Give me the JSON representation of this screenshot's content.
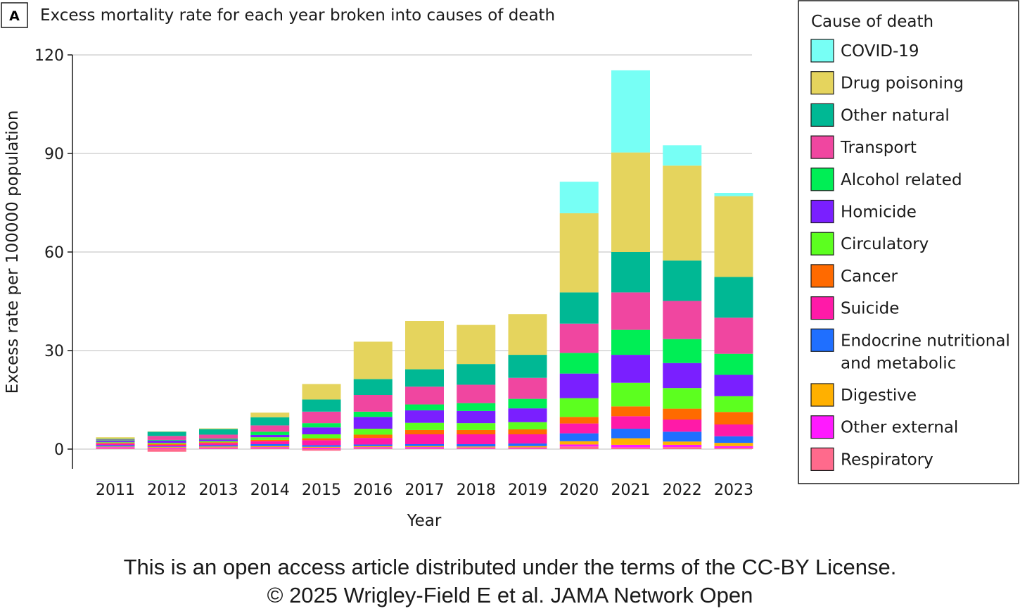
{
  "panel_label": "A",
  "footer": {
    "line1": "This is an open access article distributed under the terms of the CC-BY License.",
    "line2": "© 2025 Wrigley-Field E et al. JAMA Network Open"
  },
  "chart_data": {
    "type": "bar",
    "stacked": true,
    "title": "Excess mortality rate for each year broken into causes of death",
    "xlabel": "Year",
    "ylabel": "Excess rate per 100000 population",
    "ylim": [
      -6,
      120
    ],
    "yticks": [
      0,
      30,
      60,
      90,
      120
    ],
    "grid": true,
    "legend_title": "Cause of death",
    "legend_position": "right",
    "categories": [
      "2011",
      "2012",
      "2013",
      "2014",
      "2015",
      "2016",
      "2017",
      "2018",
      "2019",
      "2020",
      "2021",
      "2022",
      "2023"
    ],
    "series": [
      {
        "name": "Respiratory",
        "color": "#ff6a8c",
        "values": [
          0.3,
          -0.8,
          0.2,
          0.3,
          -0.5,
          0.3,
          0.2,
          0.2,
          0.2,
          0.8,
          0.5,
          0.6,
          0.4
        ]
      },
      {
        "name": "Other external",
        "color": "#ff1aff",
        "values": [
          0.3,
          0.3,
          0.3,
          0.3,
          0.4,
          0.3,
          0.4,
          0.3,
          0.3,
          0.6,
          0.8,
          0.7,
          0.5
        ]
      },
      {
        "name": "Digestive",
        "color": "#ffb000",
        "values": [
          0.2,
          0.3,
          0.3,
          0.3,
          0.3,
          0.3,
          0.3,
          0.3,
          0.4,
          1.0,
          2.0,
          1.0,
          1.0
        ]
      },
      {
        "name": "Endocrine nutritional and metabolic",
        "color": "#1f6fff",
        "values": [
          0.4,
          0.2,
          0.4,
          0.6,
          0.5,
          0.5,
          0.6,
          0.7,
          0.8,
          2.4,
          2.9,
          3.0,
          2.0
        ]
      },
      {
        "name": "Suicide",
        "color": "#ff1aa8",
        "values": [
          0.5,
          0.5,
          0.6,
          0.9,
          1.5,
          2.0,
          3.0,
          3.0,
          2.8,
          3.0,
          3.8,
          3.7,
          3.6
        ]
      },
      {
        "name": "Cancer",
        "color": "#ff6a00",
        "values": [
          0.2,
          0.3,
          0.3,
          0.4,
          0.6,
          1.0,
          1.3,
          1.3,
          1.5,
          2.0,
          3.0,
          3.3,
          3.8
        ]
      },
      {
        "name": "Circulatory",
        "color": "#5cff1f",
        "values": [
          0.2,
          0.3,
          0.3,
          0.8,
          1.2,
          1.8,
          2.2,
          2.1,
          2.2,
          5.7,
          7.2,
          6.3,
          4.8
        ]
      },
      {
        "name": "Homicide",
        "color": "#7a1fff",
        "values": [
          0.4,
          0.7,
          0.5,
          0.7,
          2.1,
          3.6,
          3.8,
          3.7,
          4.2,
          7.5,
          8.5,
          7.6,
          6.5
        ]
      },
      {
        "name": "Alcohol related",
        "color": "#00ee55",
        "values": [
          0.2,
          0.2,
          0.3,
          1.0,
          1.3,
          1.6,
          1.8,
          2.4,
          2.9,
          6.3,
          7.6,
          7.3,
          6.4
        ]
      },
      {
        "name": "Transport",
        "color": "#f046a0",
        "values": [
          0.2,
          1.2,
          1.2,
          1.9,
          3.5,
          5.1,
          5.4,
          5.6,
          6.4,
          8.9,
          11.4,
          11.6,
          11.0
        ]
      },
      {
        "name": "Other natural",
        "color": "#00b894",
        "values": [
          0.2,
          1.3,
          1.7,
          2.5,
          3.7,
          4.8,
          5.3,
          6.3,
          7.0,
          9.5,
          12.3,
          12.3,
          12.4
        ]
      },
      {
        "name": "Drug poisoning",
        "color": "#e5d45d",
        "values": [
          0.5,
          0.1,
          0.2,
          1.4,
          4.7,
          11.4,
          14.7,
          11.9,
          12.4,
          24.1,
          30.3,
          28.9,
          24.6
        ]
      },
      {
        "name": "COVID-19",
        "color": "#77fff5",
        "values": [
          0,
          0,
          0,
          0,
          0,
          0,
          0,
          0,
          0,
          9.6,
          25.0,
          6.2,
          1.0
        ]
      }
    ],
    "legend_order": [
      "COVID-19",
      "Drug poisoning",
      "Other natural",
      "Transport",
      "Alcohol related",
      "Homicide",
      "Circulatory",
      "Cancer",
      "Suicide",
      "Endocrine nutritional and metabolic",
      "Digestive",
      "Other external",
      "Respiratory"
    ],
    "legend_lines": {
      "Endocrine nutritional and metabolic": [
        "Endocrine nutritional",
        "and metabolic"
      ]
    }
  }
}
